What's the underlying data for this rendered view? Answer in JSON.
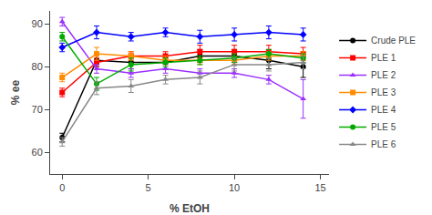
{
  "chart_data": {
    "type": "line",
    "xlabel": "% EtOH",
    "ylabel": "% ee",
    "x": [
      0,
      2,
      4,
      6,
      8,
      10,
      12,
      14
    ],
    "series": [
      {
        "name": "Crude PLE",
        "color": "#000000",
        "marker": "circle",
        "values": [
          63.5,
          81.5,
          81.0,
          81.0,
          82.5,
          82.5,
          81.5,
          80.0
        ],
        "yerr": [
          1.0,
          1.5,
          1.5,
          1.5,
          1.5,
          1.5,
          2.0,
          2.5
        ]
      },
      {
        "name": "PLE 1",
        "color": "#ff0000",
        "marker": "square",
        "values": [
          74.0,
          81.0,
          82.5,
          82.5,
          83.5,
          83.5,
          83.5,
          83.0
        ],
        "yerr": [
          1.0,
          1.0,
          1.0,
          1.0,
          1.5,
          1.5,
          1.5,
          1.5
        ]
      },
      {
        "name": "PLE 2",
        "color": "#9b30ff",
        "marker": "triangle",
        "values": [
          90.5,
          79.5,
          78.5,
          79.5,
          78.5,
          78.5,
          77.0,
          72.5
        ],
        "yerr": [
          1.0,
          1.0,
          1.0,
          1.0,
          1.0,
          1.0,
          1.0,
          4.5
        ]
      },
      {
        "name": "PLE 3",
        "color": "#ff8c00",
        "marker": "square",
        "values": [
          77.5,
          83.0,
          82.5,
          81.5,
          81.5,
          81.5,
          82.5,
          82.5
        ],
        "yerr": [
          1.0,
          1.5,
          1.0,
          1.0,
          1.0,
          1.0,
          1.0,
          1.0
        ]
      },
      {
        "name": "PLE 4",
        "color": "#0000ff",
        "marker": "diamond",
        "values": [
          84.5,
          88.0,
          87.0,
          88.0,
          87.0,
          87.5,
          88.0,
          87.5
        ],
        "yerr": [
          1.0,
          1.5,
          1.0,
          1.0,
          1.5,
          1.5,
          1.5,
          1.5
        ]
      },
      {
        "name": "PLE 5",
        "color": "#00aa00",
        "marker": "circle",
        "values": [
          87.0,
          76.0,
          80.5,
          81.0,
          81.5,
          82.0,
          83.0,
          82.0
        ],
        "yerr": [
          1.0,
          1.5,
          1.5,
          1.0,
          1.0,
          1.0,
          1.0,
          1.0
        ]
      },
      {
        "name": "PLE 6",
        "color": "#888888",
        "marker": "triangle",
        "values": [
          62.5,
          75.0,
          75.5,
          77.0,
          77.5,
          80.5,
          80.5,
          81.0
        ],
        "yerr": [
          1.0,
          1.5,
          1.5,
          1.0,
          1.5,
          1.5,
          1.5,
          1.5
        ]
      }
    ],
    "xlim": [
      -0.7,
      15.5
    ],
    "ylim": [
      55,
      93
    ],
    "xticks": [
      0,
      5,
      10,
      15
    ],
    "yticks": [
      60,
      70,
      80,
      90
    ],
    "grid": false,
    "legend": "right"
  }
}
